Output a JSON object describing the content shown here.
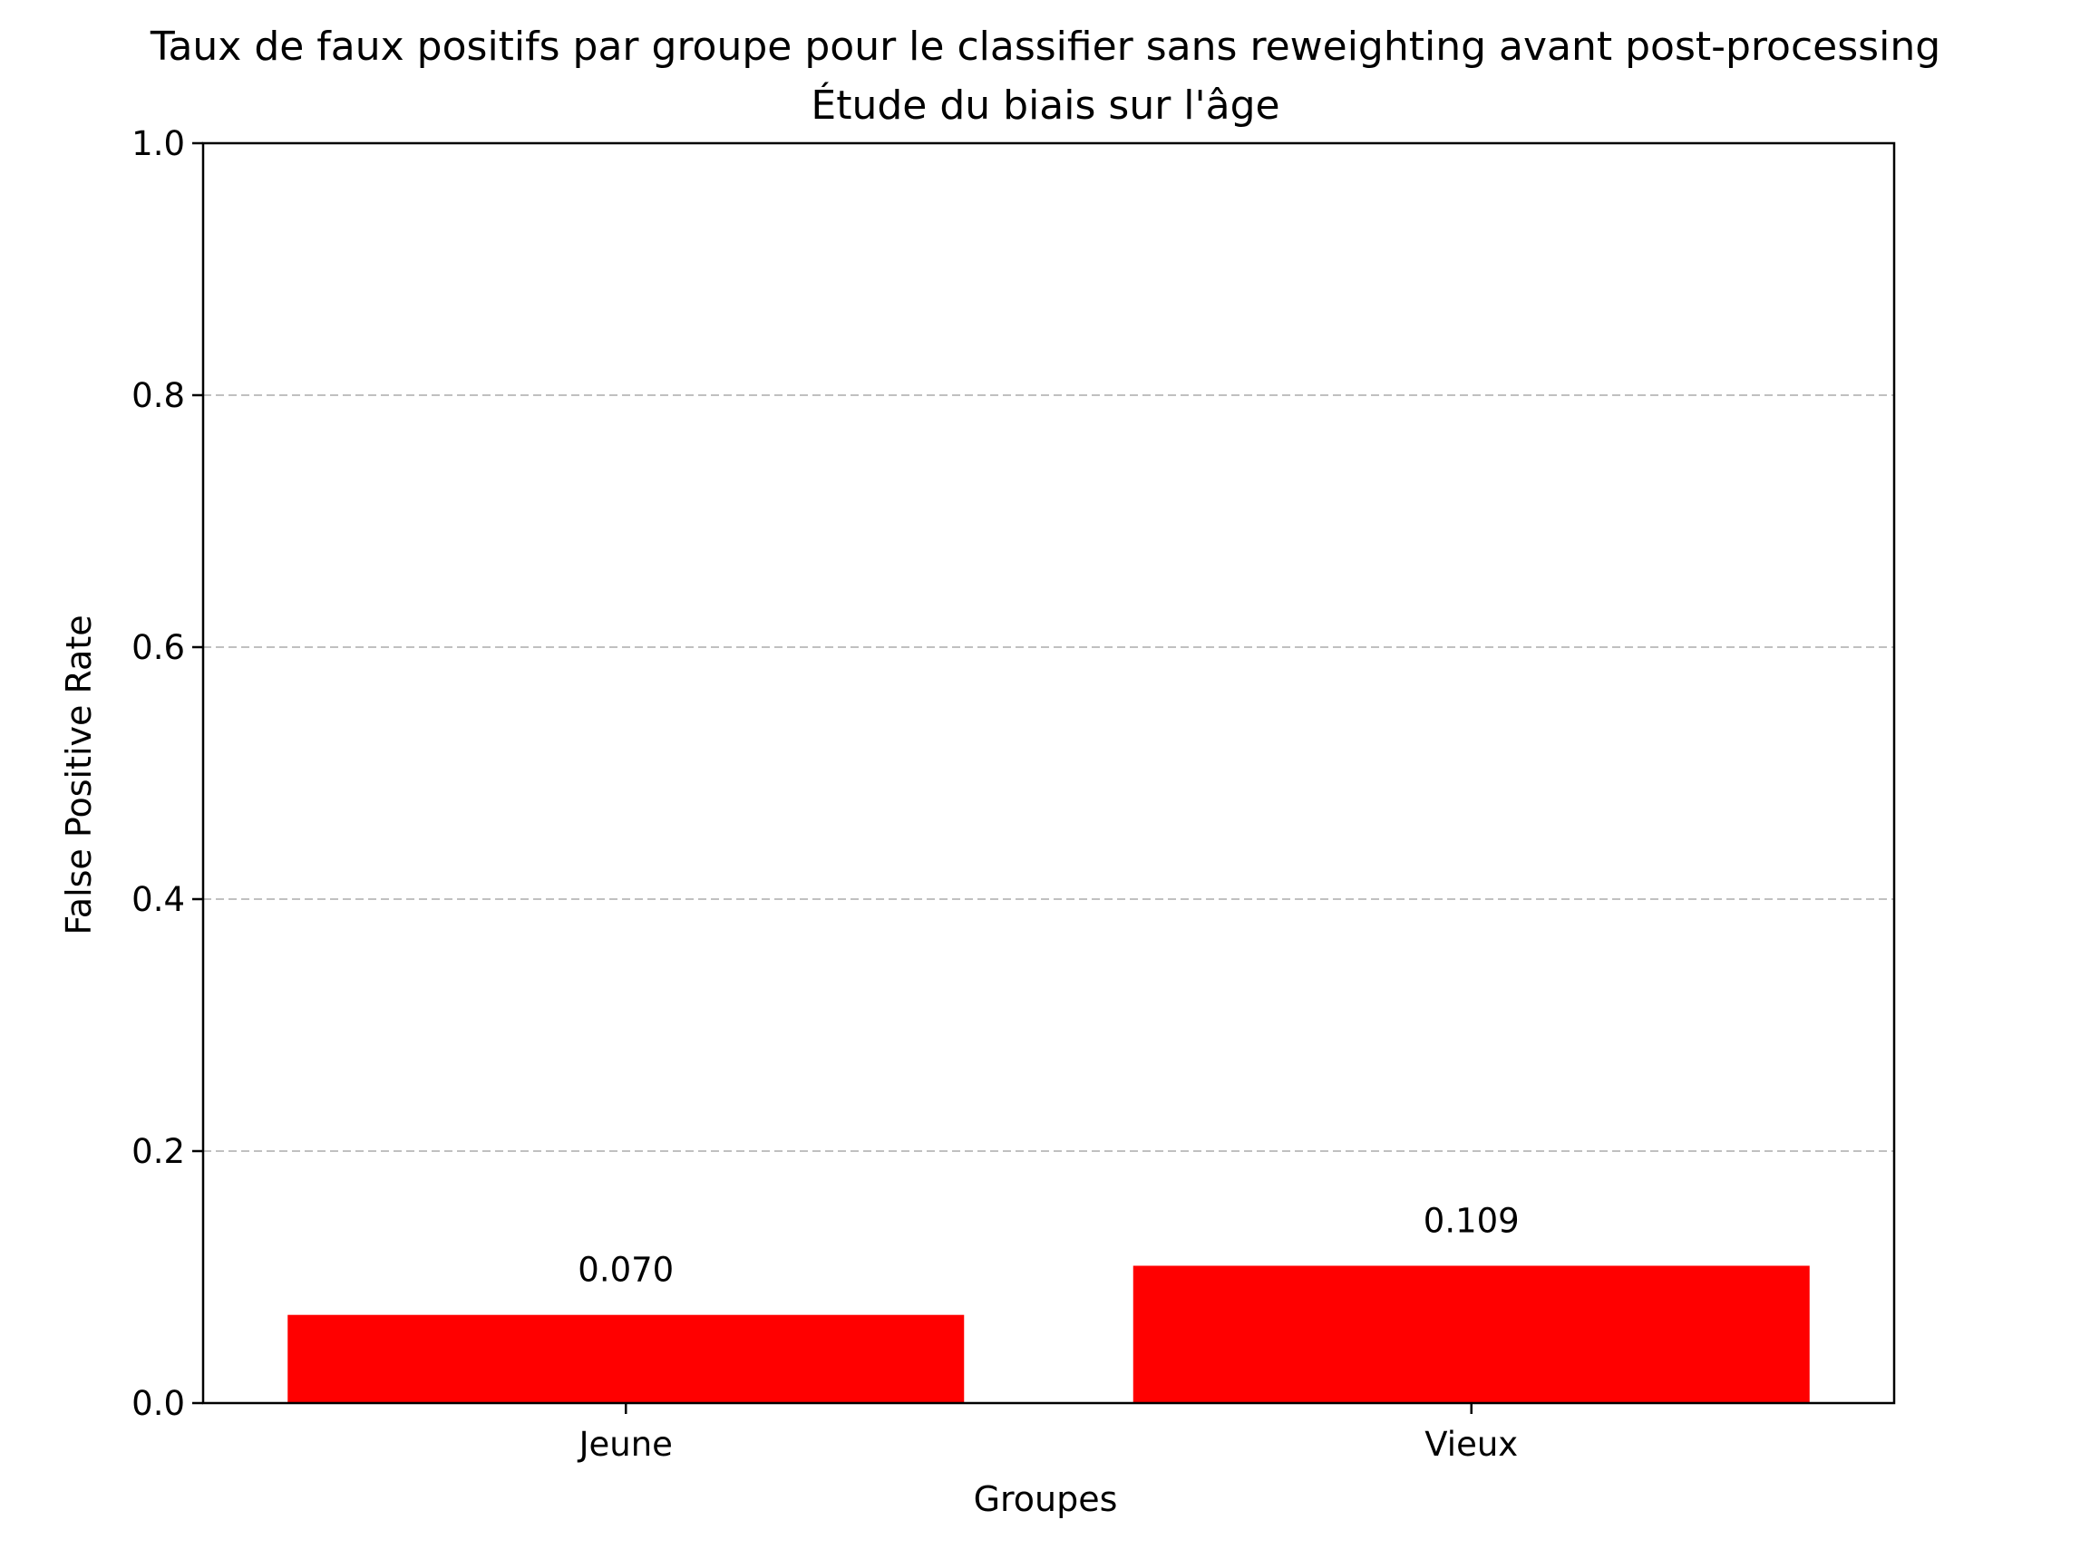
{
  "chart_data": {
    "type": "bar",
    "title": "Taux de faux positifs par groupe pour le classifier sans reweighting avant post-processing",
    "subtitle": "Étude du biais sur l'âge",
    "xlabel": "Groupes",
    "ylabel": "False Positive Rate",
    "categories": [
      "Jeune",
      "Vieux"
    ],
    "values": [
      0.07,
      0.109
    ],
    "value_labels": [
      "0.070",
      "0.109"
    ],
    "ylim": [
      0,
      1.0
    ],
    "yticks": [
      0.0,
      0.2,
      0.4,
      0.6,
      0.8,
      1.0
    ],
    "ytick_labels": [
      "0.0",
      "0.2",
      "0.4",
      "0.6",
      "0.8",
      "1.0"
    ],
    "grid": "y-dashed",
    "bar_color": "#ff0000",
    "grid_color": "#c0c0c0"
  }
}
